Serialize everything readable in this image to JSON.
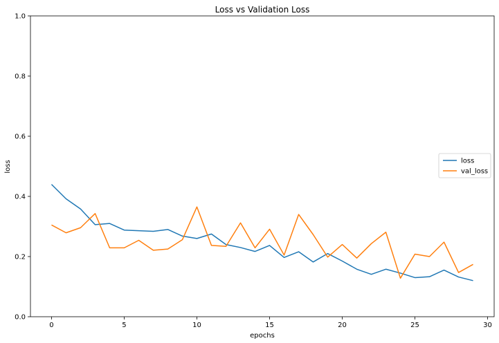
{
  "chart_data": {
    "type": "line",
    "title": "Loss vs Validation Loss",
    "xlabel": "epochs",
    "ylabel": "loss",
    "xlim": [
      -1.45,
      30.45
    ],
    "ylim": [
      0,
      1.0
    ],
    "xticks": [
      0,
      5,
      10,
      15,
      20,
      25,
      30
    ],
    "yticks": [
      0.0,
      0.2,
      0.4,
      0.6,
      0.8,
      1.0
    ],
    "xtick_labels": [
      "0",
      "5",
      "10",
      "15",
      "20",
      "25",
      "30"
    ],
    "ytick_labels": [
      "0.0",
      "0.2",
      "0.4",
      "0.6",
      "0.8",
      "1.0"
    ],
    "grid": false,
    "legend_position": "center-right",
    "x": [
      0,
      1,
      2,
      3,
      4,
      5,
      6,
      7,
      8,
      9,
      10,
      11,
      12,
      13,
      14,
      15,
      16,
      17,
      18,
      19,
      20,
      21,
      22,
      23,
      24,
      25,
      26,
      27,
      28,
      29
    ],
    "series": [
      {
        "name": "loss",
        "color": "#1f77b4",
        "values": [
          0.44,
          0.392,
          0.358,
          0.306,
          0.31,
          0.288,
          0.286,
          0.284,
          0.29,
          0.268,
          0.26,
          0.275,
          0.24,
          0.23,
          0.217,
          0.237,
          0.197,
          0.216,
          0.182,
          0.21,
          0.185,
          0.158,
          0.141,
          0.158,
          0.145,
          0.13,
          0.133,
          0.155,
          0.132,
          0.12
        ]
      },
      {
        "name": "val_loss",
        "color": "#ff7f0e",
        "values": [
          0.305,
          0.279,
          0.296,
          0.343,
          0.229,
          0.229,
          0.254,
          0.221,
          0.225,
          0.256,
          0.365,
          0.237,
          0.234,
          0.312,
          0.229,
          0.291,
          0.205,
          0.34,
          0.273,
          0.198,
          0.24,
          0.195,
          0.243,
          0.281,
          0.128,
          0.208,
          0.2,
          0.248,
          0.147,
          0.174
        ]
      }
    ]
  }
}
